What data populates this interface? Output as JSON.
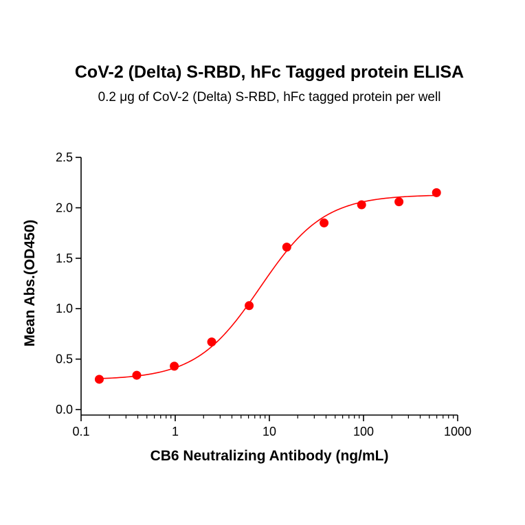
{
  "chart_data": {
    "type": "scatter",
    "title": "CoV-2 (Delta) S-RBD, hFc Tagged protein ELISA",
    "subtitle": "0.2 μg of CoV-2 (Delta) S-RBD, hFc tagged protein per well",
    "xlabel": "CB6 Neutralizing Antibody (ng/mL)",
    "ylabel": "Mean Abs.(OD450)",
    "x_scale": "log",
    "xlim": [
      0.1,
      1000
    ],
    "ylim": [
      0,
      2.5
    ],
    "x_ticks": [
      0.1,
      1,
      10,
      100,
      1000
    ],
    "x_tick_labels": [
      "0.1",
      "1",
      "10",
      "100",
      "1000"
    ],
    "y_ticks": [
      0,
      0.5,
      1,
      1.5,
      2,
      2.5
    ],
    "y_tick_labels": [
      "0.0",
      "0.5",
      "1.0",
      "1.5",
      "2.0",
      "2.5"
    ],
    "grid": false,
    "series": [
      {
        "marker": "circle",
        "color": "#ff0000",
        "x": [
          0.156,
          0.39,
          0.977,
          2.44,
          6.1,
          15.3,
          38.1,
          95.4,
          238,
          596
        ],
        "y": [
          0.3,
          0.34,
          0.43,
          0.67,
          1.03,
          1.61,
          1.85,
          2.03,
          2.06,
          2.15
        ]
      }
    ],
    "fit_curve": {
      "type": "4PL",
      "color": "#ff0000",
      "bottom": 0.295,
      "top": 2.13,
      "ec50": 8.0,
      "hill": 1.28
    }
  }
}
